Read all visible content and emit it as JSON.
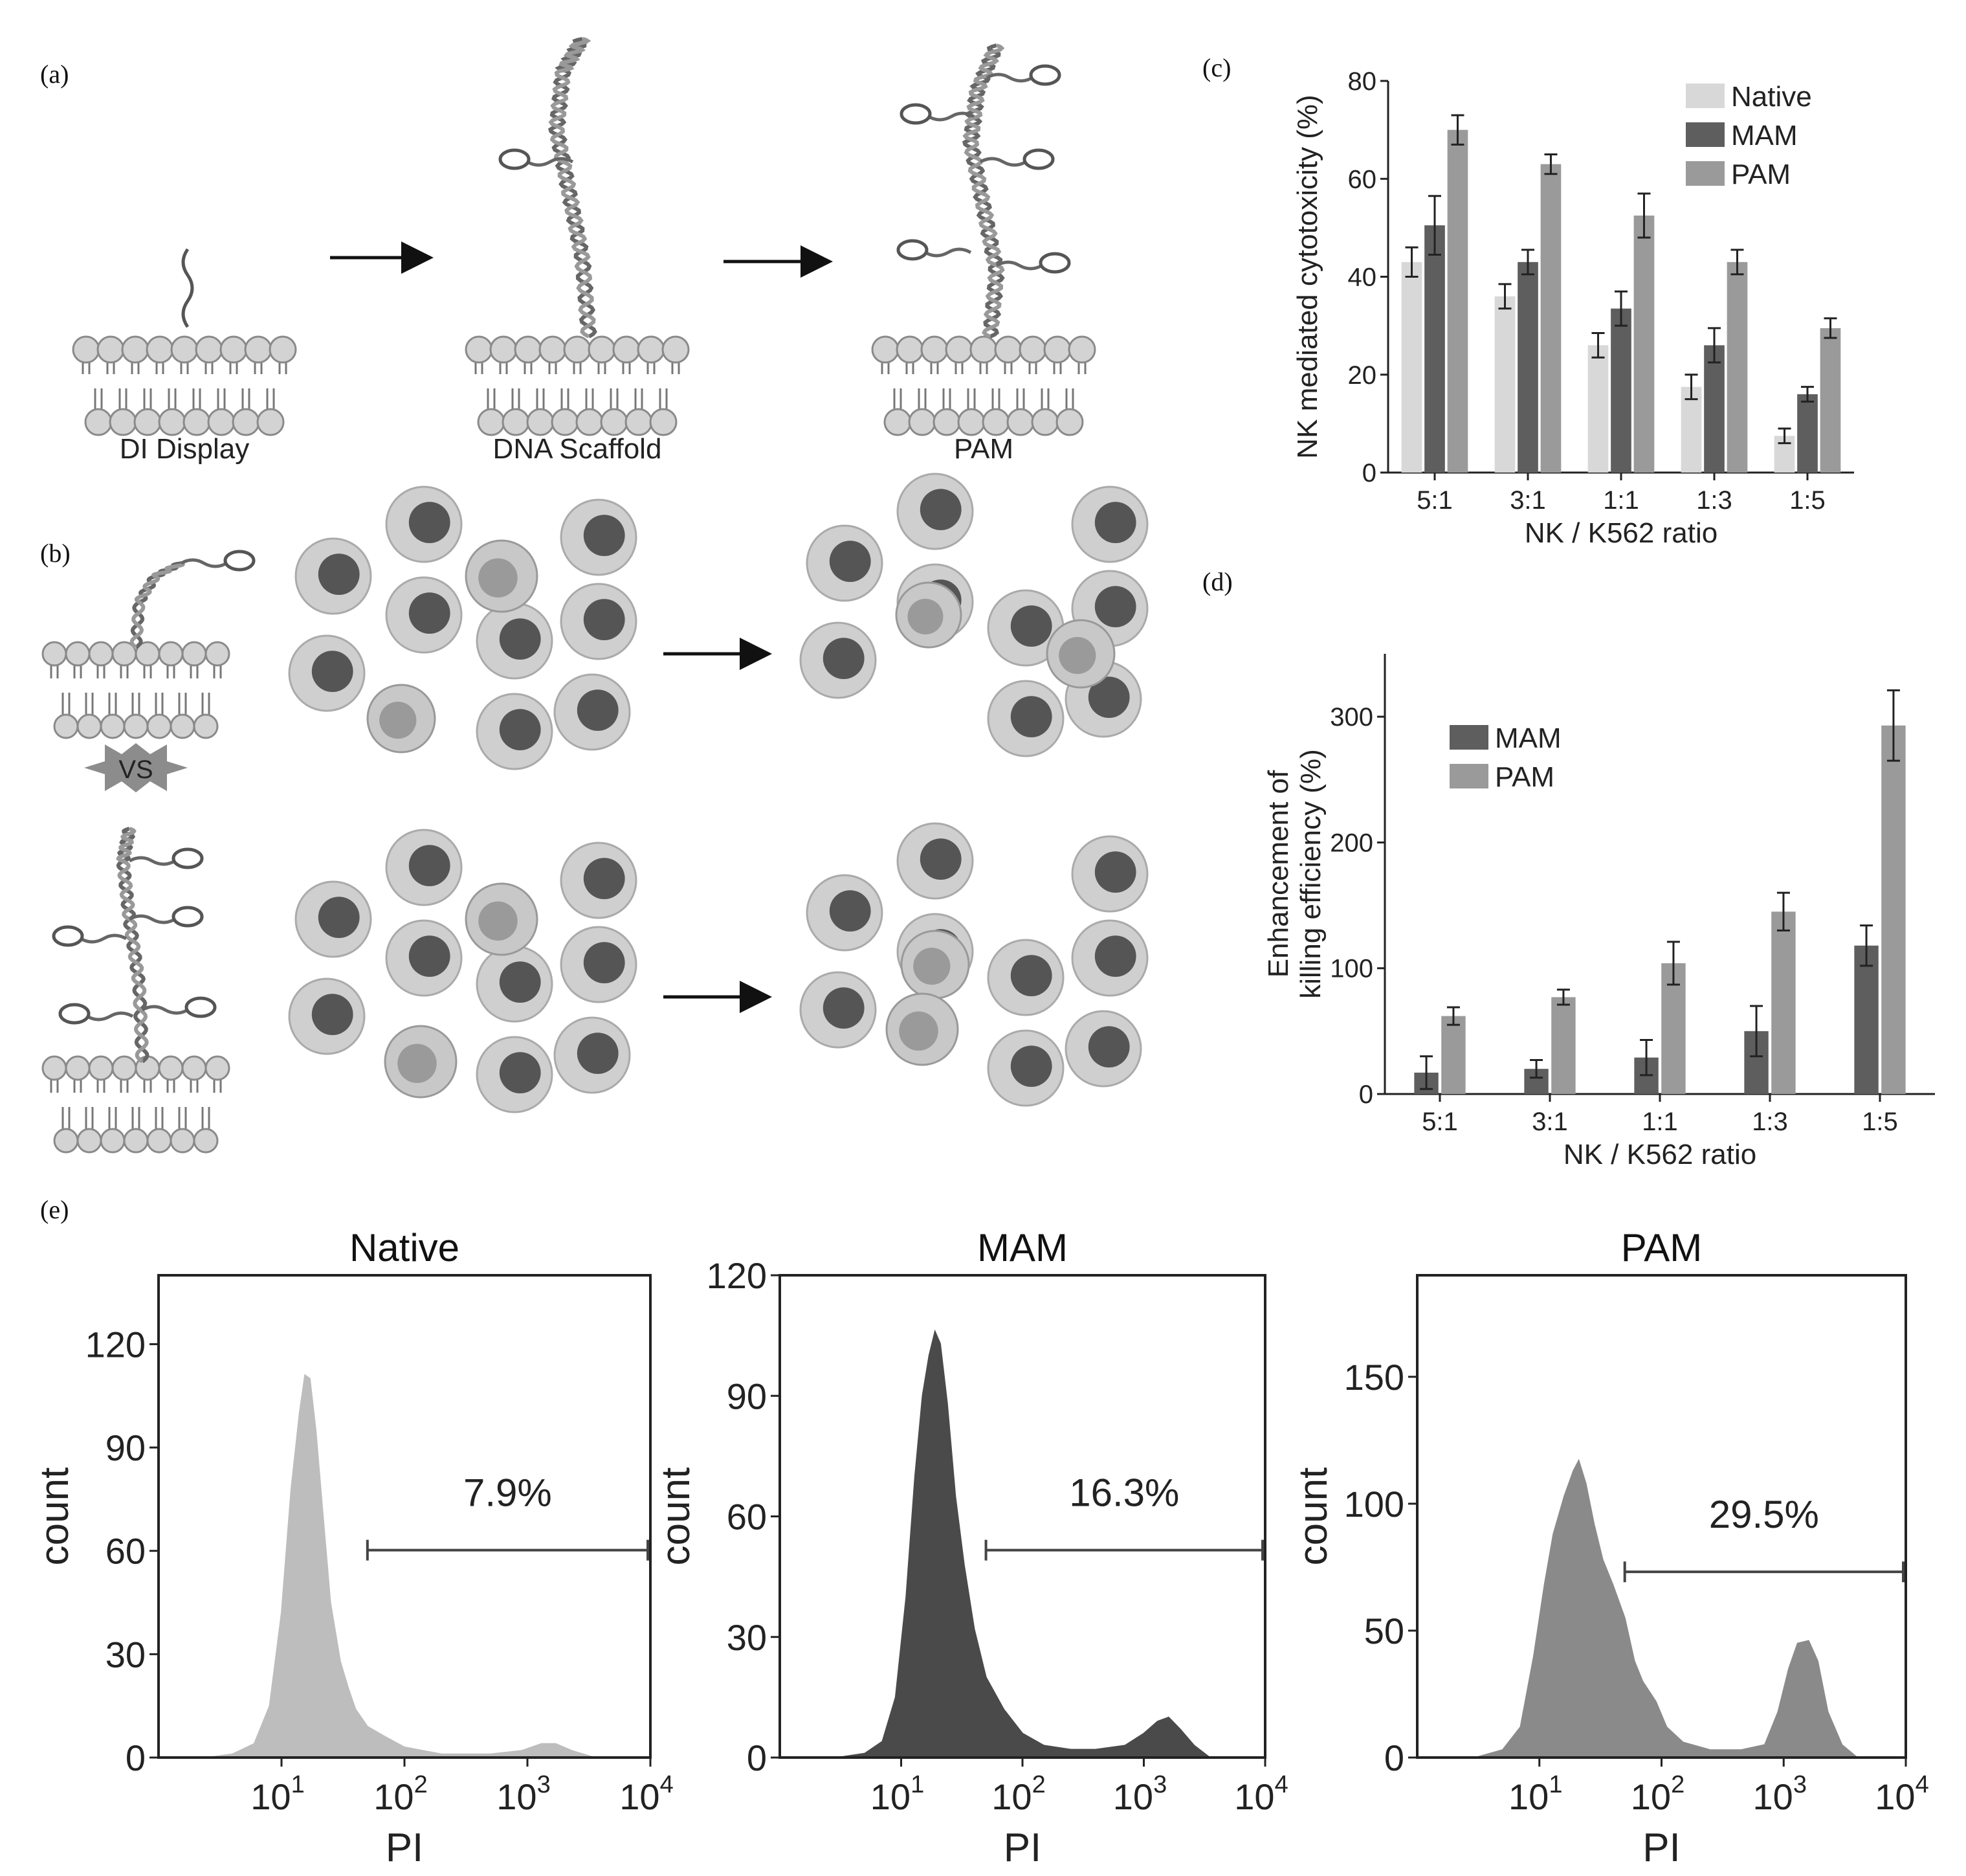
{
  "panels": {
    "a": {
      "label": "(a)",
      "captions": [
        "DI Display",
        "DNA Scaffold",
        "PAM"
      ]
    },
    "b": {
      "label": "(b)",
      "vs": "VS"
    },
    "c": {
      "label": "(c)"
    },
    "d": {
      "label": "(d)"
    },
    "e": {
      "label": "(e)"
    }
  },
  "colors": {
    "native": "#d8d8d8",
    "mam": "#5e5e5e",
    "pam": "#9a9a9a",
    "hist_native": "#bdbdbd",
    "hist_mam": "#4a4a4a",
    "hist_pam": "#8a8a8a"
  },
  "chart_data": [
    {
      "id": "c",
      "type": "bar",
      "categories": [
        "5:1",
        "3:1",
        "1:1",
        "1:3",
        "1:5"
      ],
      "series": [
        {
          "name": "Native",
          "values": [
            43,
            36,
            26,
            17.5,
            7.5
          ],
          "errors": [
            3,
            2.5,
            2.5,
            2.5,
            1.5
          ]
        },
        {
          "name": "MAM",
          "values": [
            50.5,
            43,
            33.5,
            26,
            16
          ],
          "errors": [
            6,
            2.5,
            3.5,
            3.5,
            1.5
          ]
        },
        {
          "name": "PAM",
          "values": [
            70,
            63,
            52.5,
            43,
            29.5
          ],
          "errors": [
            3,
            2,
            4.5,
            2.5,
            2
          ]
        }
      ],
      "xlabel": "NK / K562 ratio",
      "ylabel": "NK mediated cytotoxicity (%)",
      "ylim": [
        0,
        80
      ],
      "yticks": [
        "0",
        "20",
        "40",
        "60",
        "80"
      ],
      "legend": "top-right"
    },
    {
      "id": "d",
      "type": "bar",
      "categories": [
        "5:1",
        "3:1",
        "1:1",
        "1:3",
        "1:5"
      ],
      "series": [
        {
          "name": "MAM",
          "values": [
            17,
            20,
            29,
            50,
            118
          ],
          "errors": [
            13,
            7,
            14,
            20,
            16
          ]
        },
        {
          "name": "PAM",
          "values": [
            62,
            77,
            104,
            145,
            293
          ],
          "errors": [
            7,
            6,
            17,
            15,
            28
          ]
        }
      ],
      "xlabel": "NK / K562 ratio",
      "ylabel_lines": [
        "Enhancement of",
        "killing efficiency (%)"
      ],
      "ylim": [
        0,
        350
      ],
      "yticks": [
        "0",
        "100",
        "200",
        "300"
      ],
      "legend": "top-left"
    },
    {
      "id": "e1",
      "type": "area",
      "title": "Native",
      "xscale": "log",
      "xlim": [
        1,
        10000
      ],
      "ylim": [
        0,
        140
      ],
      "yticks": [
        0,
        30,
        60,
        90,
        120
      ],
      "xlabel": "PI",
      "ylabel": "count",
      "gate_percent": "7.9%",
      "gate_range": [
        50,
        10000
      ],
      "curve": [
        [
          2.5,
          0
        ],
        [
          4,
          1
        ],
        [
          6,
          4
        ],
        [
          8,
          15
        ],
        [
          10,
          42
        ],
        [
          12,
          78
        ],
        [
          14,
          100
        ],
        [
          15.5,
          111
        ],
        [
          17,
          110
        ],
        [
          19,
          95
        ],
        [
          22,
          68
        ],
        [
          25,
          45
        ],
        [
          30,
          28
        ],
        [
          35,
          20
        ],
        [
          40,
          14
        ],
        [
          50,
          9
        ],
        [
          70,
          6
        ],
        [
          100,
          3
        ],
        [
          200,
          1
        ],
        [
          500,
          1
        ],
        [
          900,
          2
        ],
        [
          1300,
          4
        ],
        [
          1700,
          4
        ],
        [
          2300,
          2
        ],
        [
          3500,
          0
        ]
      ]
    },
    {
      "id": "e2",
      "type": "area",
      "title": "MAM",
      "xscale": "log",
      "xlim": [
        1,
        10000
      ],
      "ylim": [
        0,
        120
      ],
      "yticks": [
        0,
        30,
        60,
        90,
        120
      ],
      "xlabel": "PI",
      "ylabel": "count",
      "gate_percent": "16.3%",
      "gate_range": [
        50,
        10000
      ],
      "curve": [
        [
          3,
          0
        ],
        [
          5,
          1
        ],
        [
          7,
          4
        ],
        [
          9,
          15
        ],
        [
          11,
          40
        ],
        [
          13,
          70
        ],
        [
          15,
          90
        ],
        [
          17,
          100
        ],
        [
          19,
          106
        ],
        [
          21,
          103
        ],
        [
          24,
          88
        ],
        [
          28,
          65
        ],
        [
          33,
          48
        ],
        [
          40,
          32
        ],
        [
          50,
          20
        ],
        [
          70,
          12
        ],
        [
          100,
          6
        ],
        [
          150,
          3
        ],
        [
          250,
          2
        ],
        [
          400,
          2
        ],
        [
          700,
          3
        ],
        [
          1000,
          6
        ],
        [
          1300,
          9
        ],
        [
          1600,
          10
        ],
        [
          2000,
          7
        ],
        [
          2600,
          3
        ],
        [
          3500,
          0
        ]
      ]
    },
    {
      "id": "e3",
      "type": "area",
      "title": "PAM",
      "xscale": "log",
      "xlim": [
        1,
        10000
      ],
      "ylim": [
        0,
        190
      ],
      "yticks": [
        0,
        50,
        100,
        150
      ],
      "xlabel": "PI",
      "ylabel": "count",
      "gate_percent": "29.5%",
      "gate_range": [
        50,
        10000
      ],
      "curve": [
        [
          3,
          0
        ],
        [
          5,
          3
        ],
        [
          7,
          12
        ],
        [
          9,
          40
        ],
        [
          11,
          68
        ],
        [
          13,
          88
        ],
        [
          16,
          103
        ],
        [
          19,
          113
        ],
        [
          21,
          117
        ],
        [
          24,
          108
        ],
        [
          28,
          92
        ],
        [
          33,
          78
        ],
        [
          40,
          68
        ],
        [
          50,
          55
        ],
        [
          60,
          38
        ],
        [
          70,
          30
        ],
        [
          90,
          22
        ],
        [
          110,
          12
        ],
        [
          150,
          6
        ],
        [
          250,
          3
        ],
        [
          450,
          3
        ],
        [
          700,
          5
        ],
        [
          900,
          18
        ],
        [
          1100,
          35
        ],
        [
          1300,
          45
        ],
        [
          1600,
          46
        ],
        [
          1900,
          38
        ],
        [
          2300,
          18
        ],
        [
          3000,
          5
        ],
        [
          4000,
          0
        ]
      ]
    }
  ]
}
